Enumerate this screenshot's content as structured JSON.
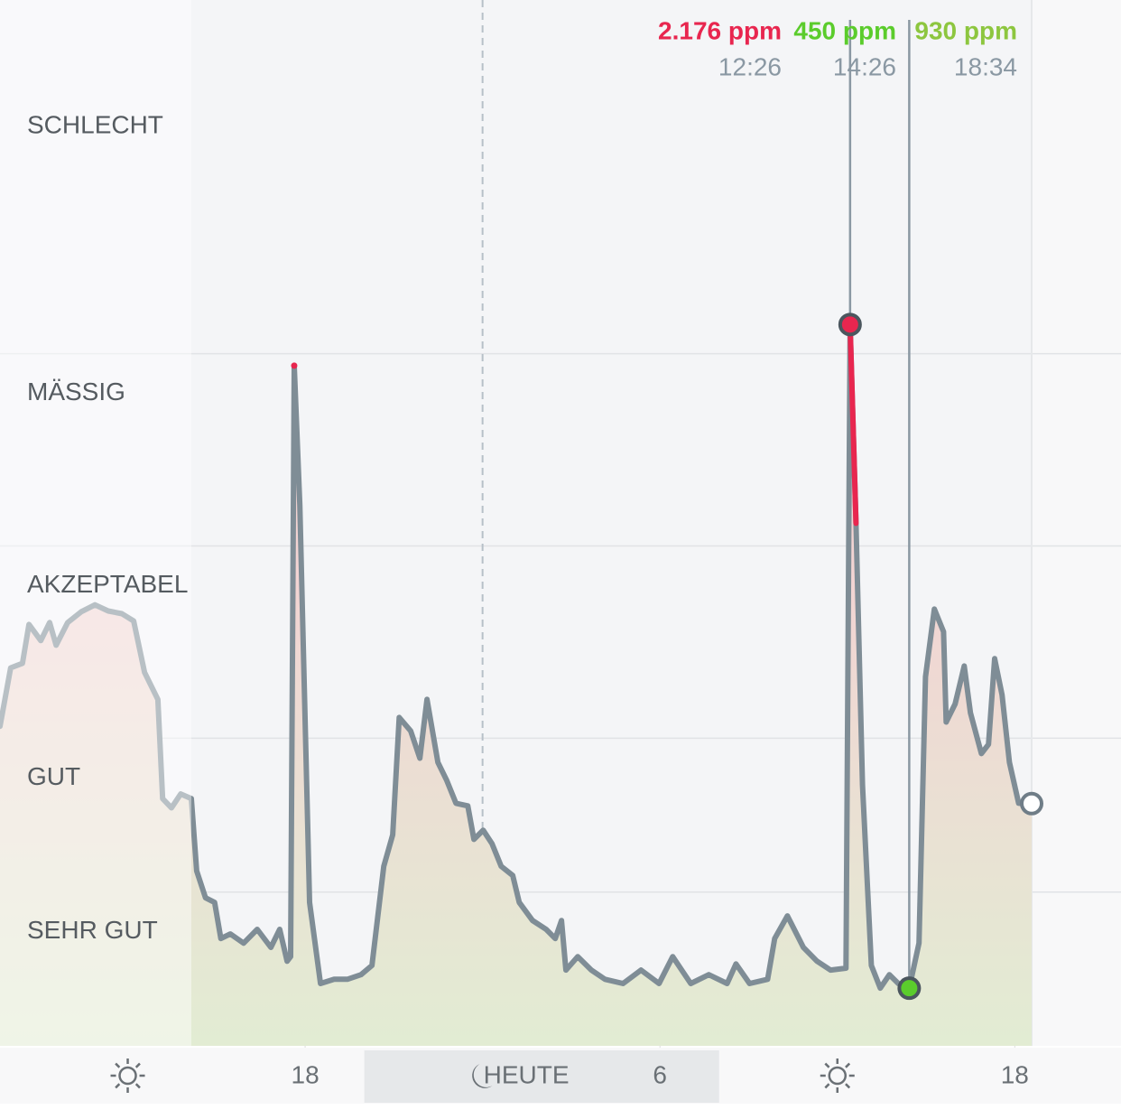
{
  "chart_data": {
    "type": "line",
    "xlim": [
      -16.32,
      18.57
    ],
    "ylim": [
      300,
      3020
    ],
    "x": [
      -16.32,
      -15.96,
      -15.56,
      -15.34,
      -14.94,
      -14.64,
      -14.42,
      -14.03,
      -13.57,
      -13.11,
      -12.66,
      -12.2,
      -11.8,
      -11.43,
      -10.98,
      -10.82,
      -10.52,
      -10.21,
      -9.85,
      -9.67,
      -9.37,
      -9.06,
      -8.85,
      -8.53,
      -8.08,
      -7.62,
      -7.16,
      -6.86,
      -6.61,
      -6.49,
      -6.37,
      -6.18,
      -5.85,
      -5.48,
      -5.02,
      -4.57,
      -4.11,
      -3.74,
      -3.34,
      -3.04,
      -2.82,
      -2.43,
      -2.12,
      -1.88,
      -1.51,
      -1.21,
      -0.9,
      -0.5,
      -0.29,
      0.02,
      0.32,
      0.63,
      1.02,
      1.24,
      1.69,
      2.15,
      2.46,
      2.67,
      2.82,
      3.22,
      3.68,
      4.14,
      4.75,
      5.36,
      5.97,
      6.43,
      7.04,
      7.65,
      8.27,
      8.57,
      9.03,
      9.64,
      9.88,
      10.31,
      10.85,
      11.31,
      11.77,
      12.29,
      12.43,
      12.63,
      12.85,
      13.15,
      13.45,
      13.76,
      14.06,
      14.43,
      14.76,
      14.98,
      15.28,
      15.59,
      15.68,
      15.98,
      16.29,
      16.5,
      16.87,
      17.11,
      17.32,
      17.57,
      17.82,
      18.13,
      18.57
    ],
    "series": [
      {
        "color": "#7f8d96",
        "values": [
          1131,
          1283,
          1295,
          1396,
          1354,
          1401,
          1342,
          1401,
          1429,
          1447,
          1431,
          1424,
          1405,
          1271,
          1201,
          943,
          919,
          955,
          943,
          755,
          685,
          673,
          579,
          591,
          567,
          603,
          556,
          603,
          520,
          532,
          2069,
          1706,
          673,
          462,
          473,
          473,
          485,
          509,
          767,
          849,
          1154,
          1119,
          1048,
          1201,
          1037,
          990,
          931,
          924,
          837,
          861,
          826,
          767,
          743,
          673,
          626,
          603,
          579,
          626,
          497,
          532,
          497,
          473,
          462,
          497,
          462,
          532,
          462,
          485,
          462,
          513,
          462,
          473,
          579,
          638,
          556,
          520,
          497,
          502,
          2176,
          1659,
          978,
          509,
          450,
          485,
          462,
          450,
          567,
          1260,
          1436,
          1377,
          1142,
          1189,
          1288,
          1166,
          1060,
          1084,
          1307,
          1213,
          1037,
          931,
          930
        ]
      }
    ],
    "history_until": -9.85,
    "night": [
      -4,
      8
    ],
    "zones": [
      {
        "label": "SCHLECHT"
      },
      {
        "label": "MÄSSIG",
        "upper": 2100
      },
      {
        "label": "AKZEPTABEL",
        "upper": 1600
      },
      {
        "label": "GUT",
        "upper": 1100
      },
      {
        "label": "SEHR GUT",
        "upper": 700
      }
    ],
    "xticks": [
      {
        "value": -12,
        "icon": "sun"
      },
      {
        "value": -6,
        "label": "18"
      },
      {
        "value": 0,
        "label": "HEUTE",
        "icon": "moon"
      },
      {
        "value": 6,
        "label": "6"
      },
      {
        "value": 12,
        "icon": "sun"
      },
      {
        "value": 18,
        "label": "18"
      }
    ],
    "readouts": [
      {
        "value": 2176,
        "label": "2.176 ppm",
        "time": "12:26",
        "x": 12.43,
        "color": "#e8264f"
      },
      {
        "value": 450,
        "label": "450 ppm",
        "time": "14:26",
        "x": 14.43,
        "color": "#5bcc2c"
      },
      {
        "value": 930,
        "label": "930 ppm",
        "time": "18:34",
        "x": 18.57,
        "color": "#8dc63f",
        "hollow": true
      }
    ]
  }
}
